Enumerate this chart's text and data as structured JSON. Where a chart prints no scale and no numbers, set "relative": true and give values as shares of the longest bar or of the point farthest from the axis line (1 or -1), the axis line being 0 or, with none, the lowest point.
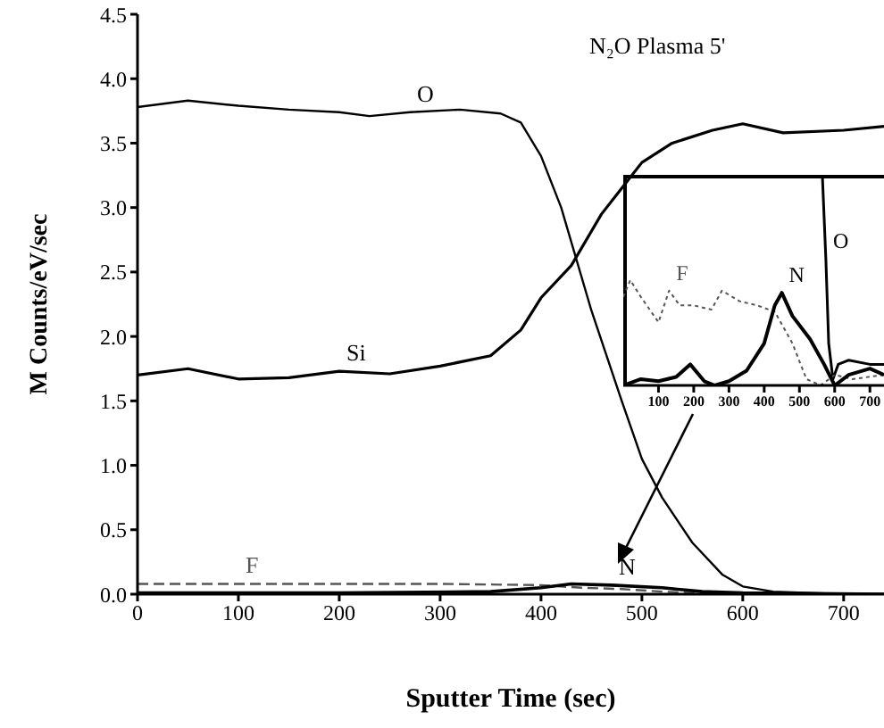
{
  "chart_data": [
    {
      "type": "line",
      "xlabel": "Sputter Time (sec)",
      "ylabel": "M Counts/eV/sec",
      "annotations": [
        "N₂O Plasma 5'"
      ],
      "xlim": [
        0,
        740
      ],
      "xticks": [
        0,
        100,
        200,
        300,
        400,
        500,
        600,
        700
      ],
      "ylim": [
        0,
        4.5
      ],
      "yticks": [
        {
          "value": 0,
          "label": "0.0"
        },
        0.5,
        {
          "value": 1,
          "label": "1.0"
        },
        1.5,
        {
          "value": 2,
          "label": "2.0"
        },
        2.5,
        {
          "value": 3,
          "label": "3.0"
        },
        3.5,
        {
          "value": 4,
          "label": "4.0"
        },
        4.5
      ],
      "series": [
        {
          "name": "O",
          "color": "#000000",
          "x": [
            0,
            50,
            100,
            150,
            200,
            230,
            270,
            320,
            360,
            380,
            400,
            420,
            450,
            480,
            500,
            520,
            550,
            580,
            600,
            630,
            700,
            740
          ],
          "values": [
            3.78,
            3.83,
            3.79,
            3.76,
            3.74,
            3.71,
            3.74,
            3.76,
            3.73,
            3.66,
            3.4,
            3.0,
            2.2,
            1.5,
            1.05,
            0.75,
            0.4,
            0.15,
            0.06,
            0.02,
            0.0,
            0.0
          ]
        },
        {
          "name": "Si",
          "color": "#000000",
          "x": [
            0,
            50,
            100,
            150,
            200,
            250,
            300,
            350,
            380,
            400,
            430,
            460,
            480,
            500,
            530,
            570,
            600,
            640,
            700,
            740
          ],
          "values": [
            1.7,
            1.75,
            1.67,
            1.68,
            1.73,
            1.71,
            1.77,
            1.85,
            2.05,
            2.3,
            2.55,
            2.95,
            3.15,
            3.35,
            3.5,
            3.6,
            3.65,
            3.58,
            3.6,
            3.63
          ]
        },
        {
          "name": "F",
          "color": "#555555",
          "line_style": "dashed",
          "x": [
            0,
            100,
            200,
            300,
            400,
            440,
            480,
            520,
            550,
            600,
            740
          ],
          "values": [
            0.08,
            0.08,
            0.08,
            0.08,
            0.07,
            0.05,
            0.04,
            0.02,
            0.01,
            0.0,
            0.0
          ]
        },
        {
          "name": "N",
          "color": "#000000",
          "x": [
            0,
            200,
            350,
            400,
            430,
            470,
            520,
            560,
            600,
            740
          ],
          "values": [
            0.01,
            0.01,
            0.02,
            0.05,
            0.08,
            0.07,
            0.05,
            0.02,
            0.01,
            0.0
          ]
        }
      ]
    },
    {
      "type": "line",
      "relative": true,
      "xlim": [
        0,
        740
      ],
      "xticks": [
        100,
        200,
        300,
        400,
        500,
        600,
        700
      ],
      "series": [
        {
          "name": "O",
          "color": "#000000",
          "x": [
            565,
            575,
            583,
            595,
            610,
            640,
            700,
            740
          ],
          "values": [
            1,
            0.6,
            0.2,
            0.03,
            0.1,
            0.12,
            0.1,
            0.1
          ]
        },
        {
          "name": "F",
          "color": "#555555",
          "line_style": "dotted",
          "x": [
            0,
            20,
            50,
            100,
            130,
            160,
            200,
            250,
            280,
            330,
            380,
            430,
            480,
            520,
            560,
            600,
            650,
            740
          ],
          "values": [
            0.42,
            0.5,
            0.42,
            0.3,
            0.45,
            0.38,
            0.38,
            0.36,
            0.45,
            0.4,
            0.38,
            0.35,
            0.2,
            0.03,
            0.0,
            0.05,
            0.03,
            0.05
          ]
        },
        {
          "name": "N",
          "color": "#000000",
          "x": [
            0,
            50,
            100,
            150,
            190,
            230,
            260,
            300,
            350,
            400,
            430,
            450,
            480,
            530,
            570,
            600,
            640,
            700,
            740
          ],
          "values": [
            0.0,
            0.03,
            0.02,
            0.04,
            0.1,
            0.02,
            0.0,
            0.02,
            0.07,
            0.2,
            0.38,
            0.44,
            0.33,
            0.22,
            0.1,
            0.0,
            0.05,
            0.08,
            0.05
          ]
        }
      ]
    }
  ]
}
